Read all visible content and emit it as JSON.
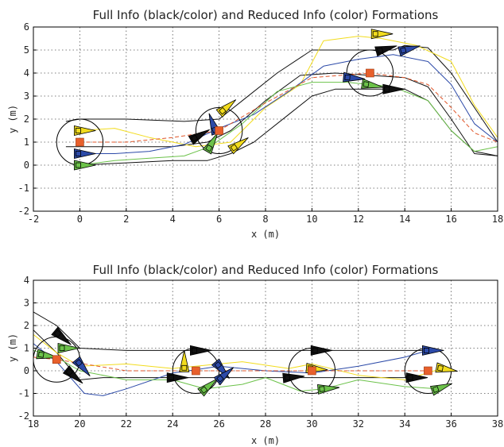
{
  "chart_data": [
    {
      "type": "line",
      "title": "Full Info (black/color) and Reduced Info (color) Formations",
      "xlabel": "x (m)",
      "ylabel": "y (m)",
      "xlim": [
        -2,
        18
      ],
      "ylim": [
        -2,
        6
      ],
      "xticks": [
        -2,
        0,
        2,
        4,
        6,
        8,
        10,
        12,
        14,
        16,
        18
      ],
      "yticks": [
        -2,
        -1,
        0,
        1,
        2,
        3,
        4,
        5,
        6
      ],
      "grid": true,
      "colors": {
        "yellow": "#f2dc1e",
        "black": "#111111",
        "blue": "#2c4aa8",
        "green": "#6cc24a",
        "red": "#e0562a",
        "centroid": "#e8602c"
      },
      "formation_circles": [
        {
          "x": 0,
          "y": 1,
          "r": 1.0
        },
        {
          "x": 6,
          "y": 1.5,
          "r": 1.0
        },
        {
          "x": 12.5,
          "y": 4,
          "r": 1.0
        }
      ],
      "centroids": [
        {
          "x": 0,
          "y": 1
        },
        {
          "x": 6,
          "y": 1.5
        },
        {
          "x": 12.5,
          "y": 4
        }
      ],
      "agents": [
        {
          "x": 0,
          "y": 1.5,
          "heading": 0,
          "color": "yellow"
        },
        {
          "x": 0,
          "y": 0.5,
          "heading": 0,
          "color": "blue"
        },
        {
          "x": 0,
          "y": 0,
          "heading": 0,
          "color": "green"
        },
        {
          "x": 6.2,
          "y": 2.4,
          "heading": 40,
          "color": "yellow"
        },
        {
          "x": 5.8,
          "y": 1.6,
          "heading": 110,
          "color": "blue"
        },
        {
          "x": 5.0,
          "y": 1.2,
          "heading": 30,
          "color": "black"
        },
        {
          "x": 5.6,
          "y": 0.8,
          "heading": 60,
          "color": "green"
        },
        {
          "x": 6.7,
          "y": 0.8,
          "heading": 35,
          "color": "yellow"
        },
        {
          "x": 13.0,
          "y": 5.0,
          "heading": 15,
          "color": "black"
        },
        {
          "x": 12.8,
          "y": 5.7,
          "heading": 0,
          "color": "yellow"
        },
        {
          "x": 14.0,
          "y": 5.0,
          "heading": 15,
          "color": "blue"
        },
        {
          "x": 11.6,
          "y": 3.8,
          "heading": -5,
          "color": "blue"
        },
        {
          "x": 12.4,
          "y": 3.5,
          "heading": -10,
          "color": "green"
        },
        {
          "x": 13.3,
          "y": 3.3,
          "heading": 0,
          "color": "black"
        }
      ],
      "series": [
        {
          "color": "black",
          "x": [
            -0.6,
            0,
            2,
            4.5,
            6,
            7,
            8.5,
            10,
            11,
            12.5,
            13.5,
            14,
            15,
            16,
            17,
            18
          ],
          "y": [
            1.9,
            2.0,
            2.0,
            1.9,
            2.0,
            2.8,
            4.0,
            5.0,
            5.0,
            5.0,
            5.0,
            5.2,
            5.1,
            4.0,
            2.5,
            1.0
          ]
        },
        {
          "color": "black",
          "x": [
            -0.6,
            0,
            2,
            4,
            5.5,
            6.5,
            8,
            9.5,
            11,
            12.5,
            14,
            15,
            16,
            17,
            18
          ],
          "y": [
            0.8,
            0.8,
            0.8,
            0.8,
            1.0,
            1.5,
            2.8,
            3.9,
            4.0,
            3.9,
            3.8,
            3.4,
            2.0,
            0.5,
            0.4
          ]
        },
        {
          "color": "black",
          "x": [
            0,
            2,
            4,
            5.5,
            6.5,
            7.5,
            9,
            10,
            11,
            12.5,
            14,
            15,
            16,
            17,
            18
          ],
          "y": [
            0,
            0.1,
            0.2,
            0.2,
            0.5,
            1.0,
            2.2,
            3.0,
            3.3,
            3.3,
            3.3,
            2.8,
            1.5,
            0.6,
            0.4
          ]
        },
        {
          "color": "yellow",
          "x": [
            0,
            1.5,
            3,
            5,
            6.5,
            8,
            9.5,
            10.5,
            12,
            13,
            14.5,
            16,
            17,
            18
          ],
          "y": [
            1.5,
            1.6,
            1.2,
            0.8,
            1.0,
            2.5,
            3.5,
            5.4,
            5.6,
            5.5,
            5.2,
            4.5,
            2.6,
            1.2
          ]
        },
        {
          "color": "blue",
          "x": [
            0,
            1.5,
            3,
            4.5,
            6,
            7.5,
            9,
            10.5,
            12,
            13.5,
            15,
            16,
            17,
            18
          ],
          "y": [
            0.5,
            0.5,
            0.6,
            0.9,
            1.6,
            2.2,
            3.2,
            4.3,
            4.6,
            4.8,
            4.5,
            3.5,
            1.8,
            1.0
          ]
        },
        {
          "color": "green",
          "x": [
            0,
            1.5,
            3,
            4.5,
            5.6,
            7,
            8.5,
            10,
            11.5,
            12.5,
            13.5,
            15,
            16,
            17,
            18
          ],
          "y": [
            0,
            0.2,
            0.3,
            0.4,
            0.8,
            1.8,
            3.2,
            3.6,
            3.6,
            3.5,
            3.4,
            2.8,
            1.5,
            0.6,
            0.8
          ]
        },
        {
          "color": "red",
          "x": [
            0,
            2,
            4,
            6,
            8,
            10,
            12.5,
            14,
            15,
            16,
            17,
            18
          ],
          "y": [
            1,
            1,
            1.2,
            1.5,
            2.7,
            3.8,
            4.0,
            3.8,
            3.5,
            2.5,
            1.4,
            1.0
          ],
          "dashed": true
        }
      ]
    },
    {
      "type": "line",
      "title": "Full Info (black/color) and Reduced Info (color) Formations",
      "xlabel": "x (m)",
      "ylabel": "y (m)",
      "xlim": [
        18,
        38
      ],
      "ylim": [
        -2,
        4
      ],
      "xticks": [
        18,
        20,
        22,
        24,
        26,
        28,
        30,
        32,
        34,
        36,
        38
      ],
      "yticks": [
        -2,
        -1,
        0,
        1,
        2,
        3,
        4
      ],
      "grid": true,
      "colors": {
        "yellow": "#f2dc1e",
        "black": "#111111",
        "blue": "#2c4aa8",
        "green": "#6cc24a",
        "red": "#e0562a",
        "centroid": "#e8602c"
      },
      "formation_circles": [
        {
          "x": 19,
          "y": 0.5,
          "r": 1.0
        },
        {
          "x": 25,
          "y": 0,
          "r": 1.0
        },
        {
          "x": 30,
          "y": 0,
          "r": 1.0
        },
        {
          "x": 35,
          "y": 0,
          "r": 1.0
        }
      ],
      "centroids": [
        {
          "x": 19,
          "y": 0.5
        },
        {
          "x": 25,
          "y": 0
        },
        {
          "x": 30,
          "y": 0
        },
        {
          "x": 35,
          "y": 0
        }
      ],
      "agents": [
        {
          "x": 19.1,
          "y": 1.6,
          "heading": -40,
          "color": "black"
        },
        {
          "x": 18.4,
          "y": 0.7,
          "heading": -10,
          "color": "green"
        },
        {
          "x": 19.3,
          "y": 1.0,
          "heading": 0,
          "color": "green"
        },
        {
          "x": 19.6,
          "y": -0.1,
          "heading": -40,
          "color": "black"
        },
        {
          "x": 20.0,
          "y": 0.3,
          "heading": -50,
          "color": "blue"
        },
        {
          "x": 25.0,
          "y": 0.9,
          "heading": 0,
          "color": "black"
        },
        {
          "x": 24.5,
          "y": 0.2,
          "heading": 90,
          "color": "yellow"
        },
        {
          "x": 24.0,
          "y": -0.3,
          "heading": 0,
          "color": "black"
        },
        {
          "x": 25.4,
          "y": -0.8,
          "heading": 40,
          "color": "green"
        },
        {
          "x": 26.0,
          "y": 0.2,
          "heading": -50,
          "color": "blue"
        },
        {
          "x": 26.1,
          "y": -0.3,
          "heading": 40,
          "color": "blue"
        },
        {
          "x": 30.2,
          "y": 0.9,
          "heading": 0,
          "color": "black"
        },
        {
          "x": 29.0,
          "y": -0.3,
          "heading": 5,
          "color": "black"
        },
        {
          "x": 30.0,
          "y": 0.1,
          "heading": -5,
          "color": "yellow"
        },
        {
          "x": 30.5,
          "y": -0.8,
          "heading": 5,
          "color": "green"
        },
        {
          "x": 35.0,
          "y": 0.9,
          "heading": 0,
          "color": "blue"
        },
        {
          "x": 34.3,
          "y": -0.3,
          "heading": 0,
          "color": "black"
        },
        {
          "x": 35.6,
          "y": 0.1,
          "heading": -10,
          "color": "yellow"
        },
        {
          "x": 35.4,
          "y": -0.8,
          "heading": 20,
          "color": "green"
        }
      ],
      "series": [
        {
          "color": "black",
          "x": [
            18,
            19,
            20,
            22,
            25,
            28,
            30,
            33,
            35
          ],
          "y": [
            2.6,
            2.0,
            1.0,
            0.9,
            0.9,
            0.9,
            0.9,
            0.9,
            0.9
          ]
        },
        {
          "color": "black",
          "x": [
            18,
            19,
            20,
            21,
            24,
            27,
            29,
            32,
            34.3
          ],
          "y": [
            1.8,
            0.8,
            -0.4,
            -0.3,
            -0.3,
            -0.3,
            -0.3,
            -0.3,
            -0.3
          ]
        },
        {
          "color": "yellow",
          "x": [
            18,
            19,
            20,
            22,
            24,
            26,
            27,
            29,
            30,
            32,
            34,
            35.6
          ],
          "y": [
            1.6,
            0.8,
            0.2,
            0.3,
            0.1,
            0.3,
            0.4,
            0.1,
            0.3,
            -0.2,
            -0.4,
            0.1
          ]
        },
        {
          "color": "blue",
          "x": [
            18,
            19,
            20.2,
            21,
            22,
            24,
            26,
            28,
            30,
            32,
            34,
            35
          ],
          "y": [
            1.2,
            0.4,
            -1.0,
            -1.1,
            -0.8,
            -0.1,
            0.2,
            0.0,
            -0.1,
            0.2,
            0.6,
            0.9
          ]
        },
        {
          "color": "green",
          "x": [
            18,
            19,
            20,
            22,
            24,
            25.4,
            27,
            28,
            29.5,
            30.5,
            32,
            34,
            35.4
          ],
          "y": [
            0.9,
            0.6,
            0.0,
            -0.4,
            -0.4,
            -0.8,
            -0.6,
            -0.3,
            -0.9,
            -0.8,
            -0.4,
            -0.7,
            -0.8
          ]
        },
        {
          "color": "red",
          "x": [
            18,
            19,
            22,
            25,
            28,
            30,
            33,
            35
          ],
          "y": [
            0.6,
            0.5,
            0.0,
            0.0,
            0.0,
            0.0,
            0.0,
            0.0
          ],
          "dashed": true
        }
      ]
    }
  ]
}
